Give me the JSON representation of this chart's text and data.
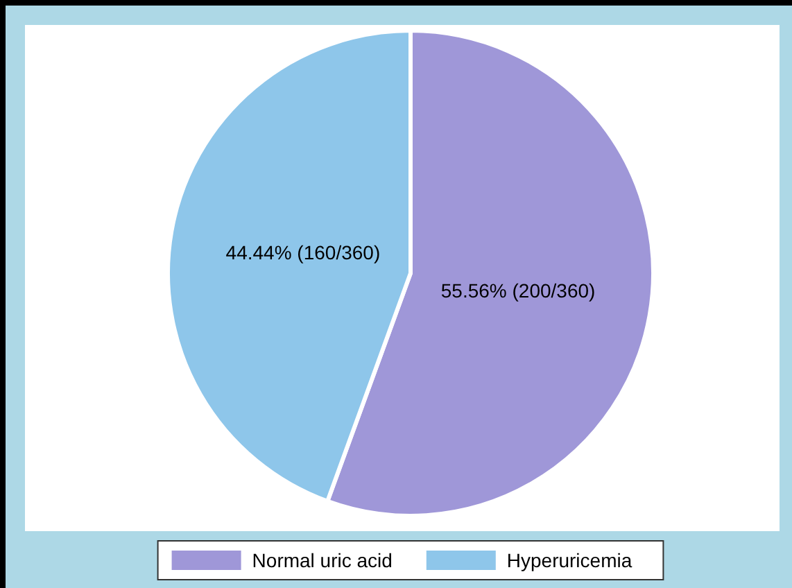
{
  "chart_data": {
    "type": "pie",
    "categories": [
      "Normal uric acid",
      "Hyperuricemia"
    ],
    "values": [
      55.56,
      44.44
    ],
    "colors": [
      "#9f97d8",
      "#8ec6ea"
    ],
    "value_labels": [
      "55.56% (200/360)",
      "44.44% (160/360)"
    ],
    "legend": "bottom"
  }
}
